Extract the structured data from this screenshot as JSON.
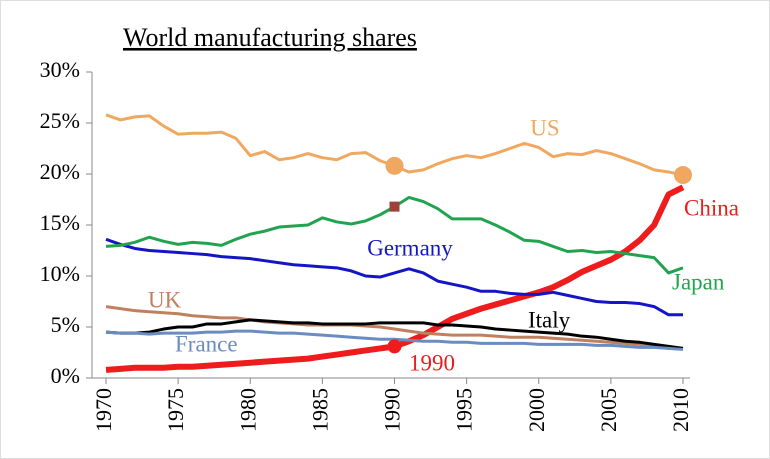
{
  "chart_data": {
    "type": "line",
    "title": "World manufacturing shares",
    "x": [
      1970,
      1971,
      1972,
      1973,
      1974,
      1975,
      1976,
      1977,
      1978,
      1979,
      1980,
      1981,
      1982,
      1983,
      1984,
      1985,
      1986,
      1987,
      1988,
      1989,
      1990,
      1991,
      1992,
      1993,
      1994,
      1995,
      1996,
      1997,
      1998,
      1999,
      2000,
      2001,
      2002,
      2003,
      2004,
      2005,
      2006,
      2007,
      2008,
      2009,
      2010
    ],
    "xlim": [
      1970,
      2010
    ],
    "xticks": [
      1970,
      1975,
      1980,
      1985,
      1990,
      1995,
      2000,
      2005,
      2010
    ],
    "ylim": [
      0,
      30
    ],
    "yticks": [
      {
        "value": 0,
        "label": "0%"
      },
      {
        "value": 5,
        "label": "5%"
      },
      {
        "value": 10,
        "label": "10%"
      },
      {
        "value": 15,
        "label": "15%"
      },
      {
        "value": 20,
        "label": "20%"
      },
      {
        "value": 25,
        "label": "25%"
      },
      {
        "value": 30,
        "label": "30%"
      }
    ],
    "grid": false,
    "series": [
      {
        "name": "US",
        "color": "#f0a860",
        "values": [
          25.8,
          25.3,
          25.6,
          25.7,
          24.7,
          23.9,
          24.0,
          24.0,
          24.1,
          23.5,
          21.8,
          22.2,
          21.4,
          21.6,
          22.0,
          21.6,
          21.4,
          22.0,
          22.1,
          21.3,
          20.8,
          20.2,
          20.4,
          21.0,
          21.5,
          21.8,
          21.6,
          22.0,
          22.5,
          23.0,
          22.6,
          21.7,
          22.0,
          21.9,
          22.3,
          22.0,
          21.5,
          21.0,
          20.4,
          20.2,
          19.9
        ]
      },
      {
        "name": "China",
        "color": "#ee1c1c",
        "values": [
          0.8,
          0.9,
          1.0,
          1.0,
          1.0,
          1.1,
          1.1,
          1.2,
          1.3,
          1.4,
          1.5,
          1.6,
          1.7,
          1.8,
          1.9,
          2.1,
          2.3,
          2.5,
          2.7,
          2.9,
          3.1,
          3.6,
          4.2,
          5.0,
          5.8,
          6.3,
          6.8,
          7.2,
          7.6,
          8.0,
          8.4,
          8.9,
          9.6,
          10.4,
          11.0,
          11.6,
          12.4,
          13.5,
          15.0,
          18.0,
          18.7
        ]
      },
      {
        "name": "Germany",
        "color": "#1515c8",
        "values": [
          13.6,
          13.1,
          12.7,
          12.5,
          12.4,
          12.3,
          12.2,
          12.1,
          11.9,
          11.8,
          11.7,
          11.5,
          11.3,
          11.1,
          11.0,
          10.9,
          10.8,
          10.5,
          10.0,
          9.9,
          10.3,
          10.7,
          10.3,
          9.5,
          9.2,
          8.9,
          8.5,
          8.5,
          8.3,
          8.2,
          8.2,
          8.4,
          8.1,
          7.8,
          7.5,
          7.4,
          7.4,
          7.3,
          7.0,
          6.2,
          6.2
        ]
      },
      {
        "name": "Japan",
        "color": "#22a350",
        "values": [
          12.9,
          13.0,
          13.3,
          13.8,
          13.4,
          13.1,
          13.3,
          13.2,
          13.0,
          13.6,
          14.1,
          14.4,
          14.8,
          14.9,
          15.0,
          15.7,
          15.3,
          15.1,
          15.4,
          16.0,
          16.8,
          17.7,
          17.3,
          16.6,
          15.6,
          15.6,
          15.6,
          15.0,
          14.3,
          13.5,
          13.4,
          12.9,
          12.4,
          12.5,
          12.3,
          12.4,
          12.2,
          12.0,
          11.8,
          10.3,
          10.8
        ]
      },
      {
        "name": "UK",
        "color": "#c08060",
        "values": [
          7.0,
          6.8,
          6.6,
          6.5,
          6.4,
          6.3,
          6.1,
          6.0,
          5.9,
          5.9,
          5.7,
          5.5,
          5.4,
          5.3,
          5.2,
          5.2,
          5.2,
          5.2,
          5.1,
          5.0,
          4.8,
          4.6,
          4.4,
          4.3,
          4.2,
          4.2,
          4.2,
          4.1,
          4.0,
          4.0,
          4.0,
          3.9,
          3.8,
          3.7,
          3.6,
          3.5,
          3.4,
          3.3,
          3.1,
          2.9,
          2.9
        ]
      },
      {
        "name": "Italy",
        "color": "#000000",
        "values": [
          4.5,
          4.4,
          4.4,
          4.5,
          4.8,
          5.0,
          5.0,
          5.3,
          5.3,
          5.5,
          5.7,
          5.6,
          5.5,
          5.4,
          5.4,
          5.3,
          5.3,
          5.3,
          5.3,
          5.4,
          5.4,
          5.4,
          5.4,
          5.2,
          5.2,
          5.1,
          5.0,
          4.8,
          4.7,
          4.6,
          4.5,
          4.4,
          4.3,
          4.1,
          4.0,
          3.8,
          3.6,
          3.5,
          3.3,
          3.1,
          2.9
        ]
      },
      {
        "name": "France",
        "color": "#6a8cc0",
        "values": [
          4.5,
          4.4,
          4.4,
          4.3,
          4.4,
          4.4,
          4.4,
          4.5,
          4.5,
          4.6,
          4.6,
          4.5,
          4.4,
          4.4,
          4.3,
          4.2,
          4.1,
          4.0,
          3.9,
          3.8,
          3.8,
          3.7,
          3.6,
          3.6,
          3.5,
          3.5,
          3.4,
          3.4,
          3.4,
          3.4,
          3.3,
          3.3,
          3.3,
          3.3,
          3.2,
          3.2,
          3.1,
          3.0,
          3.0,
          2.9,
          2.8
        ]
      }
    ],
    "markers": [
      {
        "series": 0,
        "x": 1990,
        "shape": "circle"
      },
      {
        "series": 0,
        "x": 2010,
        "shape": "circle"
      },
      {
        "series": 1,
        "x": 1990,
        "shape": "circle"
      },
      {
        "series": 3,
        "x": 1990,
        "shape": "square",
        "color": "#a0403a"
      }
    ],
    "annotations": [
      {
        "text": "1990",
        "color": "#ee1c1c"
      }
    ]
  }
}
